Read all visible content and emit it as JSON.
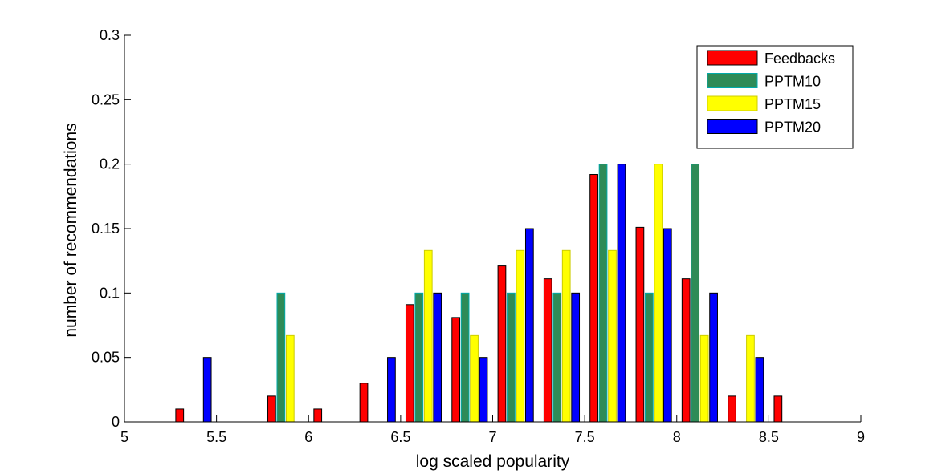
{
  "chart_data": {
    "type": "bar",
    "xlabel": "log scaled popularity",
    "ylabel": "number of recommendations",
    "xlim": [
      5,
      9
    ],
    "ylim": [
      0,
      0.3
    ],
    "x_ticks": [
      "5",
      "5.5",
      "6",
      "6.5",
      "7",
      "7.5",
      "8",
      "8.5",
      "9"
    ],
    "y_ticks": [
      "0",
      "0.05",
      "0.1",
      "0.15",
      "0.2",
      "0.25",
      "0.3"
    ],
    "bin_centers": [
      5.125,
      5.375,
      5.625,
      5.875,
      6.125,
      6.375,
      6.625,
      6.875,
      7.125,
      7.375,
      7.625,
      7.875,
      8.125,
      8.375,
      8.625,
      8.875
    ],
    "legend_position": "top-right",
    "grid": false,
    "series": [
      {
        "name": "Feedbacks",
        "color": "#ff0000",
        "edge": "#000000",
        "values": [
          0,
          0.01,
          0,
          0.02,
          0.01,
          0.03,
          0.091,
          0.081,
          0.121,
          0.111,
          0.192,
          0.151,
          0.111,
          0.02,
          0.02,
          0
        ]
      },
      {
        "name": "PPTM10",
        "color": "#2e8b57",
        "edge": "#00aaaa",
        "values": [
          0,
          0,
          0,
          0.1,
          0,
          0,
          0.1,
          0.1,
          0.1,
          0.1,
          0.2,
          0.1,
          0.2,
          0,
          0,
          0
        ]
      },
      {
        "name": "PPTM15",
        "color": "#ffff00",
        "edge": "#cccc00",
        "values": [
          0,
          0,
          0,
          0.067,
          0,
          0,
          0.133,
          0.067,
          0.133,
          0.133,
          0.133,
          0.2,
          0.067,
          0.067,
          0,
          0
        ]
      },
      {
        "name": "PPTM20",
        "color": "#0000ff",
        "edge": "#000000",
        "values": [
          0,
          0.05,
          0,
          0,
          0,
          0.05,
          0.1,
          0.05,
          0.15,
          0.1,
          0.2,
          0.15,
          0.1,
          0.05,
          0,
          0
        ]
      }
    ]
  }
}
